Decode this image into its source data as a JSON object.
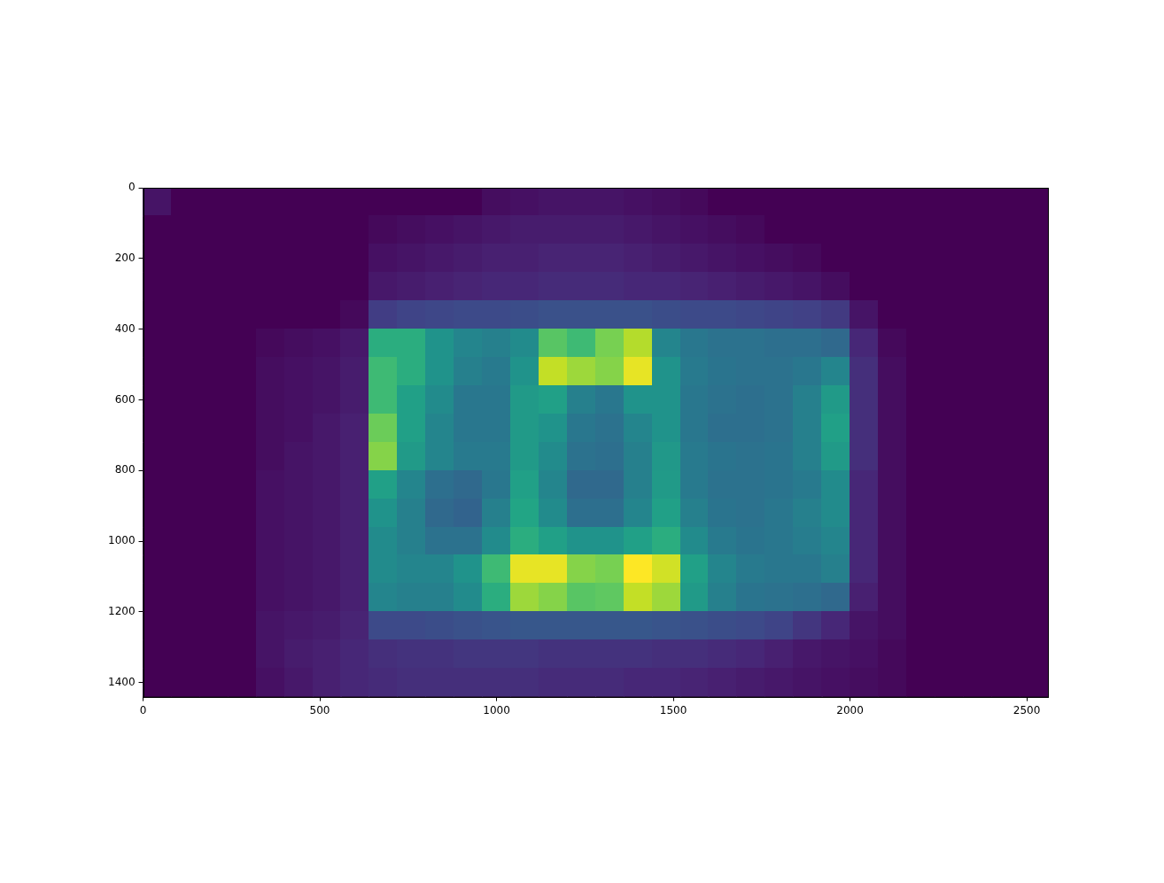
{
  "chart_data": {
    "type": "heatmap",
    "x": [
      40,
      120,
      200,
      280,
      360,
      440,
      520,
      600,
      680,
      760,
      840,
      920,
      1000,
      1080,
      1160,
      1240,
      1320,
      1400,
      1480,
      1560,
      1640,
      1720,
      1800,
      1880,
      1960,
      2040,
      2120,
      2200,
      2280,
      2360,
      2440,
      2520
    ],
    "y": [
      40,
      120,
      200,
      280,
      360,
      440,
      520,
      600,
      680,
      760,
      840,
      920,
      1000,
      1080,
      1160,
      1240,
      1320,
      1400
    ],
    "xlim": [
      0,
      2560
    ],
    "ylim": [
      1440,
      0
    ],
    "xticks": [
      0,
      500,
      1000,
      1500,
      2000,
      2500
    ],
    "yticks": [
      0,
      200,
      400,
      600,
      800,
      1000,
      1200,
      1400
    ],
    "grid": false,
    "cells": [
      [
        0.05,
        0,
        0,
        0,
        0,
        0,
        0,
        0,
        0,
        0,
        0,
        0,
        0.03,
        0.04,
        0.05,
        0.05,
        0.05,
        0.04,
        0.03,
        0.02,
        0,
        0,
        0,
        0,
        0,
        0,
        0,
        0,
        0,
        0,
        0,
        0
      ],
      [
        0,
        0,
        0,
        0,
        0,
        0,
        0,
        0,
        0.02,
        0.03,
        0.04,
        0.05,
        0.06,
        0.07,
        0.07,
        0.07,
        0.07,
        0.06,
        0.05,
        0.04,
        0.03,
        0.02,
        0,
        0,
        0,
        0,
        0,
        0,
        0,
        0,
        0,
        0
      ],
      [
        0,
        0,
        0,
        0,
        0,
        0,
        0,
        0,
        0.04,
        0.05,
        0.06,
        0.07,
        0.08,
        0.08,
        0.09,
        0.09,
        0.09,
        0.08,
        0.07,
        0.06,
        0.05,
        0.04,
        0.03,
        0.02,
        0,
        0,
        0,
        0,
        0,
        0,
        0,
        0
      ],
      [
        0,
        0,
        0,
        0,
        0,
        0,
        0,
        0,
        0.06,
        0.07,
        0.08,
        0.09,
        0.1,
        0.1,
        0.11,
        0.11,
        0.11,
        0.1,
        0.1,
        0.09,
        0.08,
        0.07,
        0.06,
        0.05,
        0.03,
        0,
        0,
        0,
        0,
        0,
        0,
        0
      ],
      [
        0,
        0,
        0,
        0,
        0,
        0,
        0,
        0.02,
        0.16,
        0.18,
        0.19,
        0.2,
        0.2,
        0.21,
        0.22,
        0.22,
        0.22,
        0.22,
        0.21,
        0.2,
        0.2,
        0.19,
        0.18,
        0.17,
        0.15,
        0.05,
        0,
        0,
        0,
        0,
        0,
        0
      ],
      [
        0,
        0,
        0,
        0,
        0.02,
        0.03,
        0.04,
        0.06,
        0.55,
        0.55,
        0.45,
        0.4,
        0.38,
        0.42,
        0.65,
        0.6,
        0.7,
        0.78,
        0.4,
        0.35,
        0.33,
        0.33,
        0.32,
        0.32,
        0.3,
        0.1,
        0.02,
        0,
        0,
        0,
        0,
        0
      ],
      [
        0,
        0,
        0,
        0,
        0.03,
        0.04,
        0.05,
        0.07,
        0.6,
        0.55,
        0.45,
        0.38,
        0.36,
        0.45,
        0.8,
        0.75,
        0.72,
        0.85,
        0.45,
        0.36,
        0.34,
        0.33,
        0.33,
        0.35,
        0.4,
        0.12,
        0.03,
        0,
        0,
        0,
        0,
        0
      ],
      [
        0,
        0,
        0,
        0,
        0.03,
        0.04,
        0.05,
        0.07,
        0.6,
        0.5,
        0.42,
        0.35,
        0.35,
        0.48,
        0.5,
        0.38,
        0.35,
        0.45,
        0.45,
        0.35,
        0.33,
        0.32,
        0.33,
        0.38,
        0.48,
        0.12,
        0.03,
        0,
        0,
        0,
        0,
        0
      ],
      [
        0,
        0,
        0,
        0,
        0.03,
        0.04,
        0.06,
        0.08,
        0.68,
        0.5,
        0.4,
        0.35,
        0.35,
        0.48,
        0.45,
        0.35,
        0.33,
        0.4,
        0.45,
        0.35,
        0.32,
        0.32,
        0.33,
        0.38,
        0.5,
        0.12,
        0.03,
        0,
        0,
        0,
        0,
        0
      ],
      [
        0,
        0,
        0,
        0,
        0.03,
        0.05,
        0.06,
        0.08,
        0.72,
        0.48,
        0.4,
        0.36,
        0.36,
        0.48,
        0.42,
        0.33,
        0.32,
        0.38,
        0.47,
        0.36,
        0.34,
        0.33,
        0.34,
        0.38,
        0.48,
        0.12,
        0.03,
        0,
        0,
        0,
        0,
        0
      ],
      [
        0,
        0,
        0,
        0,
        0.04,
        0.05,
        0.06,
        0.08,
        0.5,
        0.4,
        0.32,
        0.3,
        0.35,
        0.5,
        0.4,
        0.3,
        0.3,
        0.38,
        0.48,
        0.36,
        0.33,
        0.33,
        0.34,
        0.36,
        0.42,
        0.1,
        0.03,
        0,
        0,
        0,
        0,
        0
      ],
      [
        0,
        0,
        0,
        0,
        0.04,
        0.05,
        0.06,
        0.08,
        0.45,
        0.38,
        0.3,
        0.28,
        0.38,
        0.52,
        0.42,
        0.32,
        0.32,
        0.4,
        0.5,
        0.38,
        0.34,
        0.33,
        0.35,
        0.38,
        0.42,
        0.1,
        0.03,
        0,
        0,
        0,
        0,
        0
      ],
      [
        0,
        0,
        0,
        0,
        0.04,
        0.05,
        0.06,
        0.08,
        0.42,
        0.38,
        0.33,
        0.33,
        0.42,
        0.55,
        0.5,
        0.45,
        0.45,
        0.5,
        0.55,
        0.42,
        0.36,
        0.34,
        0.35,
        0.37,
        0.4,
        0.1,
        0.03,
        0,
        0,
        0,
        0,
        0
      ],
      [
        0,
        0,
        0,
        0,
        0.04,
        0.05,
        0.06,
        0.08,
        0.42,
        0.4,
        0.4,
        0.45,
        0.6,
        0.85,
        0.85,
        0.72,
        0.7,
        0.88,
        0.82,
        0.5,
        0.4,
        0.36,
        0.35,
        0.35,
        0.38,
        0.1,
        0.03,
        0,
        0,
        0,
        0,
        0
      ],
      [
        0,
        0,
        0,
        0,
        0.04,
        0.05,
        0.06,
        0.08,
        0.4,
        0.38,
        0.38,
        0.42,
        0.55,
        0.75,
        0.72,
        0.65,
        0.66,
        0.8,
        0.75,
        0.48,
        0.38,
        0.34,
        0.33,
        0.32,
        0.3,
        0.08,
        0.03,
        0,
        0,
        0,
        0,
        0
      ],
      [
        0,
        0,
        0,
        0,
        0.05,
        0.06,
        0.07,
        0.09,
        0.2,
        0.2,
        0.21,
        0.22,
        0.23,
        0.24,
        0.24,
        0.24,
        0.24,
        0.24,
        0.23,
        0.22,
        0.21,
        0.2,
        0.18,
        0.14,
        0.1,
        0.05,
        0.03,
        0,
        0,
        0,
        0,
        0
      ],
      [
        0,
        0,
        0,
        0,
        0.05,
        0.07,
        0.08,
        0.1,
        0.12,
        0.13,
        0.13,
        0.14,
        0.14,
        0.14,
        0.13,
        0.13,
        0.13,
        0.13,
        0.12,
        0.12,
        0.11,
        0.1,
        0.08,
        0.06,
        0.05,
        0.04,
        0.02,
        0,
        0,
        0,
        0,
        0
      ],
      [
        0,
        0,
        0,
        0,
        0.04,
        0.06,
        0.08,
        0.1,
        0.11,
        0.12,
        0.12,
        0.12,
        0.12,
        0.12,
        0.11,
        0.11,
        0.11,
        0.1,
        0.1,
        0.09,
        0.08,
        0.07,
        0.06,
        0.05,
        0.04,
        0.03,
        0.02,
        0,
        0,
        0,
        0,
        0
      ]
    ]
  }
}
